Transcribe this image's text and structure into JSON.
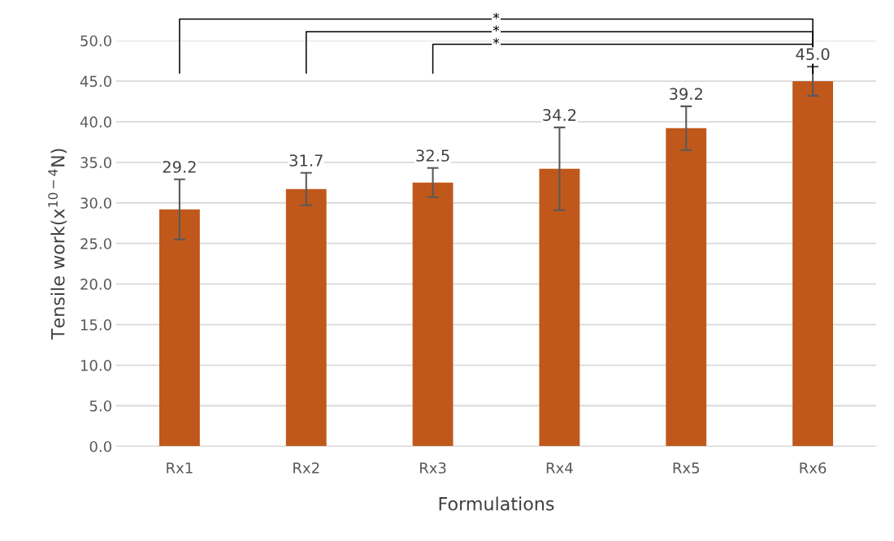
{
  "chart_data": {
    "type": "bar",
    "xlabel": "Formulations",
    "ylabel": "Tensile work(x$^{10−4}$N)",
    "categories": [
      "Rx1",
      "Rx2",
      "Rx3",
      "Rx4",
      "Rx5",
      "Rx6"
    ],
    "values": [
      29.2,
      31.7,
      32.5,
      34.2,
      39.2,
      45.0
    ],
    "errors": [
      3.7,
      2.0,
      1.8,
      5.1,
      2.7,
      1.8
    ],
    "color": "#c0581b",
    "value_labels": [
      "29.2",
      "31.7",
      "32.5",
      "34.2",
      "39.2",
      "45.0"
    ],
    "ylim": [
      0,
      50
    ],
    "yticks": [
      {
        "value": 0,
        "label": "0.0"
      },
      {
        "value": 5,
        "label": "5.0"
      },
      {
        "value": 10,
        "label": "10.0"
      },
      {
        "value": 15,
        "label": "15.0"
      },
      {
        "value": 20,
        "label": "20.0"
      },
      {
        "value": 25,
        "label": "25.0"
      },
      {
        "value": 30,
        "label": "30.0"
      },
      {
        "value": 35,
        "label": "35.0"
      },
      {
        "value": 40,
        "label": "40.0"
      },
      {
        "value": 45,
        "label": "45.0"
      },
      {
        "value": 50,
        "label": "50.0"
      }
    ],
    "grid": "y",
    "annotations": [
      "*",
      "*",
      "*"
    ]
  }
}
